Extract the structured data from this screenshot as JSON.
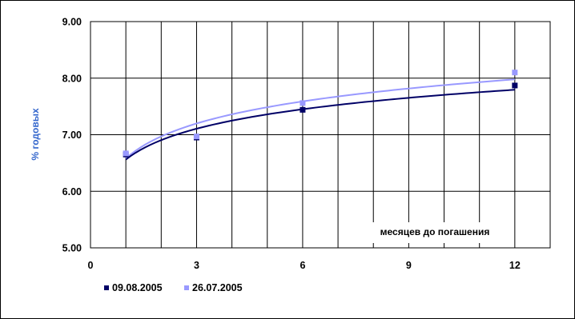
{
  "chart_data": {
    "type": "scatter",
    "ylabel": "% годовых",
    "annotation": "месяцев до погашения",
    "xlim": [
      0,
      13
    ],
    "ylim": [
      5,
      9
    ],
    "x_ticks": [
      "0",
      "3",
      "6",
      "9",
      "12"
    ],
    "y_ticks": [
      "5.00",
      "6.00",
      "7.00",
      "8.00",
      "9.00"
    ],
    "x_grid_step": 1,
    "y_grid_step": 1,
    "grid": true,
    "legend_position": "bottom-left",
    "trendline": "logarithmic",
    "series": [
      {
        "name": "09.08.2005",
        "color": "#000066",
        "x": [
          1,
          3,
          6,
          12
        ],
        "y": [
          6.65,
          6.95,
          7.44,
          7.87
        ],
        "trend": {
          "a": 6.56,
          "b": 0.497
        }
      },
      {
        "name": "26.07.2005",
        "color": "#9999ff",
        "x": [
          1,
          3,
          6,
          12
        ],
        "y": [
          6.67,
          6.97,
          7.56,
          8.1
        ],
        "trend": {
          "a": 6.58,
          "b": 0.563
        }
      }
    ]
  }
}
